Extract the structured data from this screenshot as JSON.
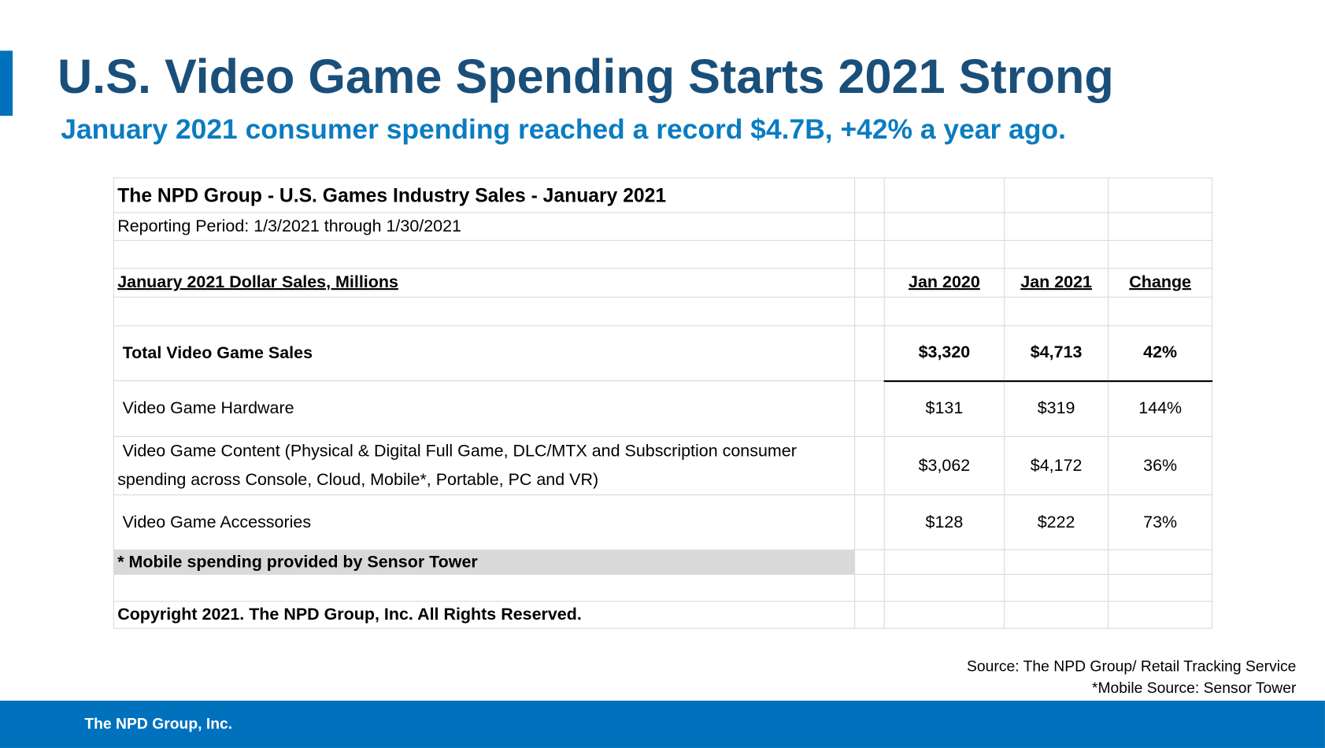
{
  "header": {
    "title": "U.S. Video Game Spending Starts 2021 Strong",
    "subtitle": "January 2021 consumer spending reached a record $4.7B, +42% a year ago."
  },
  "table": {
    "title": "The NPD Group - U.S. Games Industry Sales - January 2021",
    "period": "Reporting Period: 1/3/2021 through 1/30/2021",
    "section_label": "January 2021 Dollar Sales, Millions",
    "columns": [
      "Jan 2020",
      "Jan 2021",
      "Change"
    ],
    "rows": [
      [
        "Total Video Game Sales",
        "$3,320",
        "$4,713",
        "42%"
      ],
      [
        "Video Game Hardware",
        "$131",
        "$319",
        "144%"
      ],
      [
        "Video Game Content (Physical & Digital Full Game, DLC/MTX and Subscription consumer spending across Console, Cloud, Mobile*, Portable, PC and VR)",
        "$3,062",
        "$4,172",
        "36%"
      ],
      [
        "Video Game Accessories",
        "$128",
        "$222",
        "73%"
      ]
    ],
    "footnote": "* Mobile spending provided by Sensor Tower",
    "copyright": "Copyright 2021.  The NPD Group, Inc.  All Rights Reserved."
  },
  "source": [
    "Source: The NPD Group/ Retail Tracking Service",
    "*Mobile Source: Sensor Tower"
  ],
  "footer": "The NPD Group, Inc."
}
